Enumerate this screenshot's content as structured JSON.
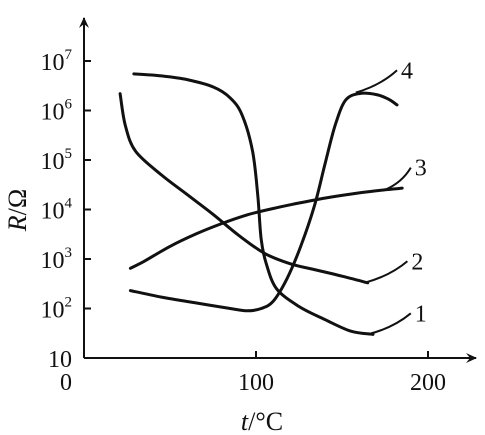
{
  "chart_data": {
    "type": "line",
    "y_scale": "log",
    "xlim": [
      0,
      230
    ],
    "ylim": [
      10,
      10000000
    ],
    "grid": false,
    "legend": "none",
    "xlabel": {
      "var": "t",
      "rest": "/°C"
    },
    "ylabel": {
      "var": "R",
      "rest": "/Ω"
    },
    "x_ticks": [
      {
        "value": 0,
        "label": "0"
      },
      {
        "value": 100,
        "label": "100"
      },
      {
        "value": 200,
        "label": "200"
      }
    ],
    "y_ticks": [
      {
        "value": 10,
        "base": "10",
        "exp": ""
      },
      {
        "value": 100,
        "base": "10",
        "exp": "2"
      },
      {
        "value": 1000,
        "base": "10",
        "exp": "3"
      },
      {
        "value": 10000,
        "base": "10",
        "exp": "4"
      },
      {
        "value": 100000,
        "base": "10",
        "exp": "5"
      },
      {
        "value": 1000000,
        "base": "10",
        "exp": "6"
      },
      {
        "value": 10000000,
        "base": "10",
        "exp": "7"
      }
    ],
    "series": [
      {
        "label": "1",
        "label_at": [
          195,
          10
        ],
        "leader_from": [
          165,
          30
        ],
        "leader_to": [
          190,
          80
        ],
        "points": [
          [
            29,
            5500000
          ],
          [
            45,
            5000000
          ],
          [
            60,
            4200000
          ],
          [
            75,
            3000000
          ],
          [
            85,
            1800000
          ],
          [
            92,
            800000
          ],
          [
            98,
            150000
          ],
          [
            101,
            20000
          ],
          [
            103,
            2500
          ],
          [
            106,
            800
          ],
          [
            112,
            250
          ],
          [
            125,
            110
          ],
          [
            140,
            60
          ],
          [
            155,
            35
          ],
          [
            168,
            30
          ]
        ]
      },
      {
        "label": "2",
        "label_at": [
          190,
          50
        ],
        "leader_from": [
          163,
          330
        ],
        "leader_to": [
          188,
          900
        ],
        "points": [
          [
            21,
            2200000
          ],
          [
            24,
            500000
          ],
          [
            30,
            150000
          ],
          [
            45,
            50000
          ],
          [
            60,
            20000
          ],
          [
            75,
            8000
          ],
          [
            90,
            3000
          ],
          [
            105,
            1300
          ],
          [
            120,
            800
          ],
          [
            135,
            600
          ],
          [
            150,
            450
          ],
          [
            165,
            330
          ]
        ]
      },
      {
        "label": "3",
        "label_at": [
          190,
          35
        ],
        "leader_from": [
          175,
          25000
        ],
        "leader_to": [
          190,
          70000
        ],
        "points": [
          [
            27,
            650
          ],
          [
            35,
            900
          ],
          [
            50,
            1800
          ],
          [
            65,
            3200
          ],
          [
            80,
            5200
          ],
          [
            95,
            7800
          ],
          [
            110,
            10500
          ],
          [
            125,
            13500
          ],
          [
            140,
            17000
          ],
          [
            155,
            20500
          ],
          [
            170,
            24000
          ],
          [
            185,
            27000
          ]
        ]
      },
      {
        "label": "4",
        "label_at": [
          190,
          60
        ],
        "leader_from": [
          158,
          2300000
        ],
        "leader_to": [
          182,
          6500000
        ],
        "points": [
          [
            27,
            230
          ],
          [
            45,
            170
          ],
          [
            65,
            130
          ],
          [
            85,
            100
          ],
          [
            95,
            90
          ],
          [
            103,
            100
          ],
          [
            110,
            140
          ],
          [
            118,
            400
          ],
          [
            126,
            1800
          ],
          [
            134,
            12000
          ],
          [
            140,
            80000
          ],
          [
            146,
            500000
          ],
          [
            152,
            1600000
          ],
          [
            160,
            2200000
          ],
          [
            170,
            2100000
          ],
          [
            177,
            1700000
          ],
          [
            182,
            1300000
          ]
        ]
      }
    ]
  }
}
